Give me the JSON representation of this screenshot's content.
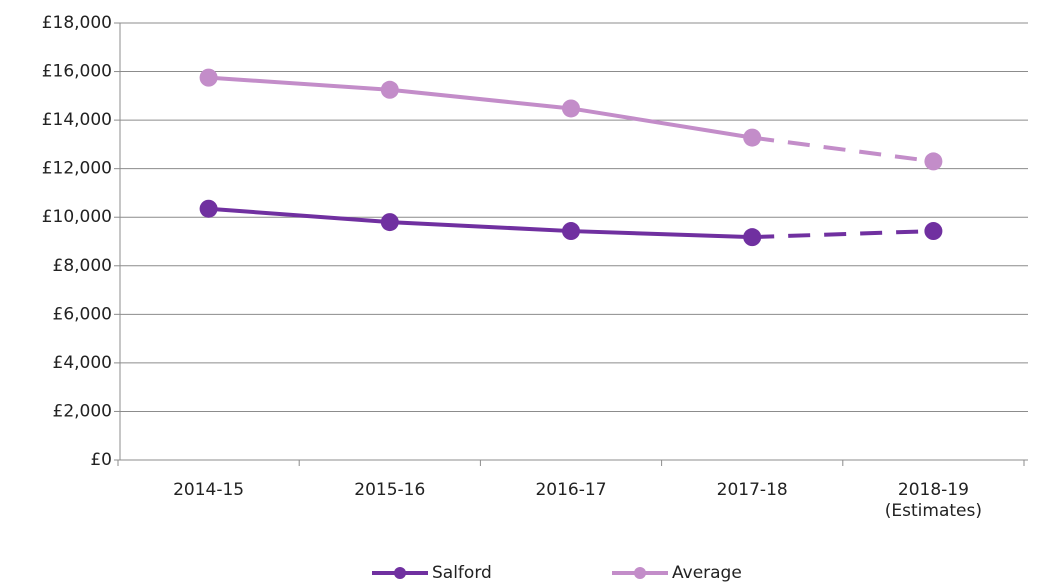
{
  "chart_data": {
    "type": "line",
    "categories": [
      "2014-15",
      "2015-16",
      "2016-17",
      "2017-18",
      "2018-19\n(Estimates)"
    ],
    "series": [
      {
        "name": "Salford",
        "color": "#7030a0",
        "values": [
          10350,
          9800,
          9430,
          9180,
          9430
        ]
      },
      {
        "name": "Average",
        "color": "#c38dc9",
        "values": [
          15750,
          15250,
          14480,
          13280,
          12300
        ]
      }
    ],
    "dashed_from_index": 3,
    "ylim": [
      0,
      18000
    ],
    "yticks": [
      {
        "value": 0,
        "label": "£0"
      },
      {
        "value": 2000,
        "label": "£2,000"
      },
      {
        "value": 4000,
        "label": "£4,000"
      },
      {
        "value": 6000,
        "label": "£6,000"
      },
      {
        "value": 8000,
        "label": "£8,000"
      },
      {
        "value": 10000,
        "label": "£10,000"
      },
      {
        "value": 12000,
        "label": "£12,000"
      },
      {
        "value": 14000,
        "label": "£14,000"
      },
      {
        "value": 16000,
        "label": "£16,000"
      },
      {
        "value": 18000,
        "label": "£18,000"
      }
    ],
    "grid": true,
    "legend": "bottom"
  }
}
